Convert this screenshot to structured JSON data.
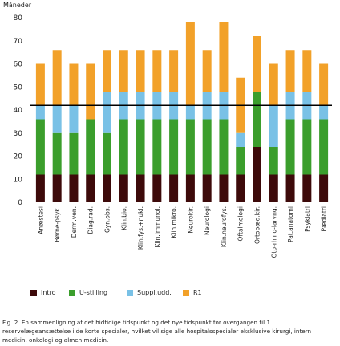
{
  "chart_data": {
    "type": "bar",
    "stacked": true,
    "ylabel": "Måneder",
    "ylim": [
      0,
      80
    ],
    "yticks": [
      0,
      10,
      20,
      30,
      40,
      50,
      60,
      70,
      80
    ],
    "grid": false,
    "reference_line": 42,
    "legend_position": "bottom",
    "categories": [
      "Anæstesi",
      "Børne-psyk.",
      "Derm.ven.",
      "Diag.rad.",
      "Gyn.obs.",
      "Klin.bio.",
      "Klin.fys.+nukl.",
      "Klin.immunol.",
      "Klin.mikro.",
      "Neurokir.",
      "Neurologi",
      "Klin.neurofys.",
      "Oftalmologi",
      "Ortopæd.kir.",
      "Oto-rhino-laryng.",
      "Pat.anatomi",
      "Psykiatri",
      "Pædiatri"
    ],
    "series": [
      {
        "name": "Intro",
        "color": "#3d0a0a",
        "values": [
          12,
          12,
          12,
          12,
          12,
          12,
          12,
          12,
          12,
          12,
          12,
          12,
          12,
          24,
          12,
          12,
          12,
          12
        ]
      },
      {
        "name": "U-stilling",
        "color": "#3b9e2c",
        "values": [
          24,
          18,
          18,
          24,
          18,
          24,
          24,
          24,
          24,
          24,
          24,
          24,
          12,
          24,
          12,
          24,
          24,
          24
        ]
      },
      {
        "name": "Suppl.udd.",
        "color": "#79c1e6",
        "values": [
          6,
          12,
          12,
          0,
          18,
          12,
          12,
          12,
          12,
          6,
          12,
          12,
          6,
          0,
          18,
          12,
          12,
          6
        ]
      },
      {
        "name": "R1",
        "color": "#f2a129",
        "values": [
          18,
          24,
          18,
          24,
          18,
          18,
          18,
          18,
          18,
          36,
          18,
          30,
          24,
          24,
          18,
          18,
          18,
          18
        ]
      }
    ]
  },
  "caption": "Fig. 2.  En sammenligning af det hidtidige tidspunkt og det nye tidspunkt for overgangen til 1. reservelægeansættelse i de korte specialer, hvilket vil sige alle hospitalsspecialer eksklusive kirurgi, intern medicin, onkologi og almen medicin."
}
